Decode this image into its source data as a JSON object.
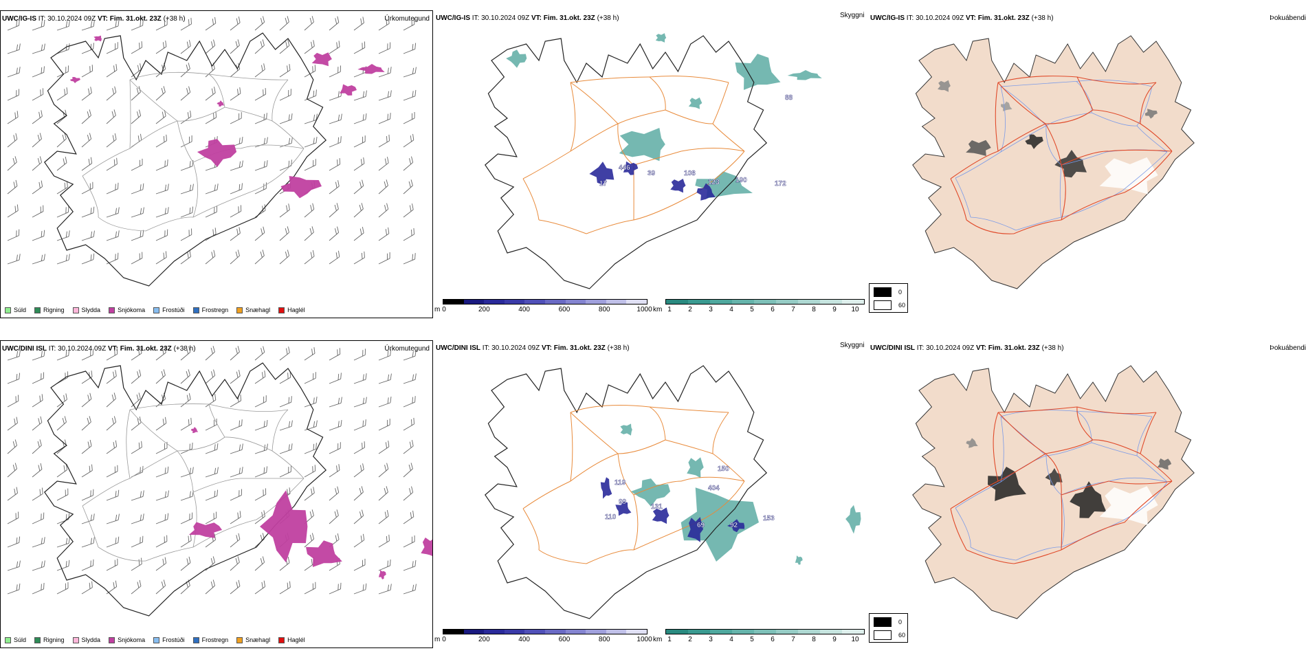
{
  "rows": [
    {
      "model": "UWC/IG-IS",
      "it_label": "IT:",
      "it_value": "30.10.2024 09Z",
      "vt_label": "VT:",
      "vt_value": "Fim. 31.okt. 23Z",
      "lead": "(+38 h)",
      "panel1_name": "Úrkomutegund",
      "panel2_name": "Skyggni",
      "panel3_name": "Þokuábendi",
      "height_labels": [
        "446",
        "39",
        "17",
        "108",
        "123",
        "190",
        "172",
        "88"
      ]
    },
    {
      "model": "UWC/DINI ISL",
      "it_label": "IT:",
      "it_value": "30.10.2024 09Z",
      "vt_label": "VT:",
      "vt_value": "Fim. 31.okt. 23Z",
      "lead": "(+38 h)",
      "panel1_name": "Úrkomutegund",
      "panel2_name": "Skyggni",
      "panel3_name": "Þokuábendi",
      "height_labels": [
        "119",
        "99",
        "131",
        "404",
        "150",
        "69",
        "92",
        "153",
        "110"
      ]
    }
  ],
  "ptype_legend": [
    {
      "label": "Súld",
      "color": "#90ee90"
    },
    {
      "label": "Rigning",
      "color": "#2e8b57"
    },
    {
      "label": "Slydda",
      "color": "#ffb6d9"
    },
    {
      "label": "Snjókoma",
      "color": "#c040a0"
    },
    {
      "label": "Frostúði",
      "color": "#87bdf0"
    },
    {
      "label": "Frostregn",
      "color": "#2f6fc0"
    },
    {
      "label": "Snæhagl",
      "color": "#f0a020"
    },
    {
      "label": "Haglél",
      "color": "#e01010"
    }
  ],
  "cbar_height": {
    "unit": "m",
    "ticks": [
      "0",
      "200",
      "400",
      "600",
      "800",
      "1000"
    ]
  },
  "cbar_vis": {
    "unit": "km",
    "ticks": [
      "1",
      "2",
      "3",
      "4",
      "5",
      "6",
      "7",
      "8",
      "9",
      "10"
    ]
  },
  "fog_legend": {
    "black_label": "0",
    "white_label": "60"
  },
  "colors": {
    "snow": "#c040a0",
    "vis_teal": "#3a9a90",
    "ceiling_blue": "#2a2a9a",
    "roads": "#e88a3a",
    "fog_land": "#f2dccb",
    "fog_roads": "#e04a2a",
    "fog_rivers": "#7a9ae8"
  }
}
